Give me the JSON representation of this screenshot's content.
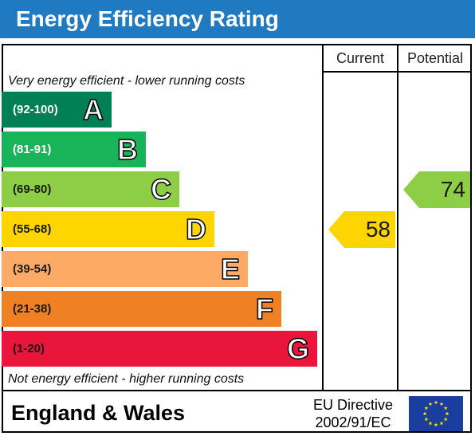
{
  "title": "Energy Efficiency Rating",
  "columns": {
    "current": "Current",
    "potential": "Potential"
  },
  "captions": {
    "top": "Very energy efficient - lower running costs",
    "bottom": "Not energy efficient - higher running costs"
  },
  "footer": {
    "region": "England & Wales",
    "directive_line1": "EU Directive",
    "directive_line2": "2002/91/EC",
    "flag_icon": "eu-flag-icon"
  },
  "chart_data": {
    "type": "bar",
    "title": "Energy Efficiency Rating",
    "categories": [
      "A",
      "B",
      "C",
      "D",
      "E",
      "F",
      "G"
    ],
    "ranges": [
      "(92-100)",
      "(81-91)",
      "(69-80)",
      "(55-68)",
      "(39-54)",
      "(21-38)",
      "(1-20)"
    ],
    "colors": [
      "#008054",
      "#19b459",
      "#8dce46",
      "#ffd500",
      "#fcaa65",
      "#ef8023",
      "#e9153b"
    ],
    "current": {
      "value": 58,
      "band": "D"
    },
    "potential": {
      "value": 74,
      "band": "C"
    }
  }
}
